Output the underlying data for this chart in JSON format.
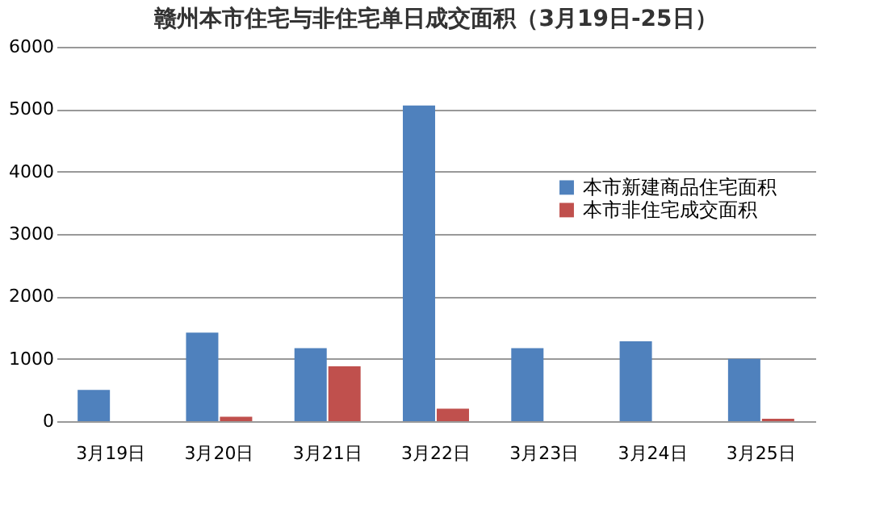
{
  "chart_data": {
    "type": "bar",
    "title": "赣州本市住宅与非住宅单日成交面积（3月19日-25日）",
    "categories": [
      "3月19日",
      "3月20日",
      "3月21日",
      "3月22日",
      "3月23日",
      "3月24日",
      "3月25日"
    ],
    "series": [
      {
        "name": "本市新建商品住宅面积",
        "color": "#4f81bd",
        "values": [
          500,
          1420,
          1170,
          5060,
          1170,
          1280,
          1000
        ]
      },
      {
        "name": "本市非住宅成交面积",
        "color": "#c0504d",
        "values": [
          0,
          70,
          880,
          200,
          0,
          0,
          40
        ]
      }
    ],
    "ylim": [
      0,
      6000
    ],
    "yticks": [
      0,
      1000,
      2000,
      3000,
      4000,
      5000,
      6000
    ],
    "grid": "y",
    "legend": "right"
  }
}
